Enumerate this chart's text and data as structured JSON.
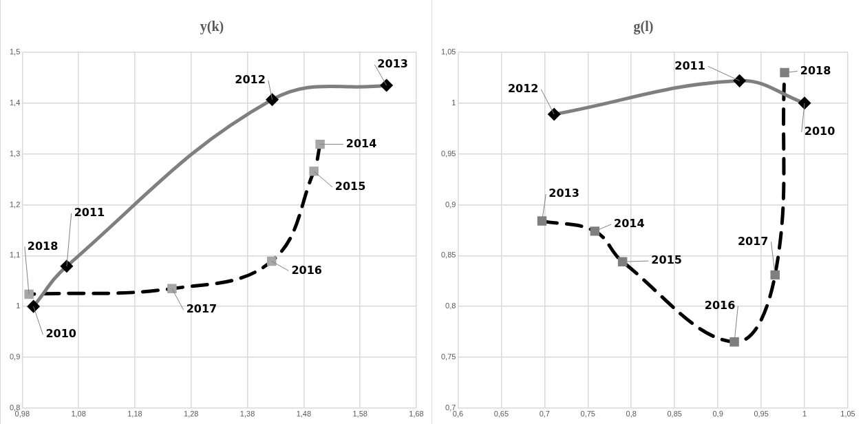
{
  "chart_data": [
    {
      "type": "line",
      "title": "y(k)",
      "grid": true,
      "xlim": [
        0.98,
        1.68
      ],
      "xticks": [
        {
          "value": 0.98,
          "label": "0,98"
        },
        {
          "value": 1.08,
          "label": "1,08"
        },
        {
          "value": 1.18,
          "label": "1,18"
        },
        {
          "value": 1.28,
          "label": "1,28"
        },
        {
          "value": 1.38,
          "label": "1,38"
        },
        {
          "value": 1.48,
          "label": "1,48"
        },
        {
          "value": 1.58,
          "label": "1,58"
        },
        {
          "value": 1.68,
          "label": "1,68"
        }
      ],
      "ylim": [
        0.8,
        1.5
      ],
      "yticks": [
        {
          "value": 0.8,
          "label": "0,8"
        },
        {
          "value": 0.9,
          "label": "0,9"
        },
        1,
        {
          "value": 1.1,
          "label": "1,1"
        },
        {
          "value": 1.2,
          "label": "1,2"
        },
        {
          "value": 1.3,
          "label": "1,3"
        },
        {
          "value": 1.4,
          "label": "1,4"
        },
        {
          "value": 1.5,
          "label": "1,5"
        }
      ],
      "series": [
        {
          "color": "#7f7f7f",
          "colors": [
            "#000000",
            "#000000",
            "#000000",
            "#000000"
          ],
          "marker": "diamond",
          "line_style": "solid",
          "x": [
            1.0,
            1.059,
            1.424,
            1.627
          ],
          "values": [
            1.0,
            1.079,
            1.407,
            1.435
          ]
        },
        {
          "color": "#000000",
          "colors": [
            "#a6a6a6",
            "#a6a6a6",
            "#a6a6a6",
            "#a6a6a6",
            "#a6a6a6"
          ],
          "marker": "square",
          "line_style": "dashed",
          "x": [
            1.509,
            1.498,
            1.423,
            1.246,
            0.992
          ],
          "values": [
            1.319,
            1.266,
            1.089,
            1.035,
            1.024
          ]
        }
      ],
      "annotations": [
        {
          "text": "2010",
          "x": 1.0,
          "y": 1.0
        },
        {
          "text": "2011",
          "x": 1.059,
          "y": 1.079
        },
        {
          "text": "2012",
          "x": 1.424,
          "y": 1.407
        },
        {
          "text": "2013",
          "x": 1.627,
          "y": 1.435
        },
        {
          "text": "2014",
          "x": 1.509,
          "y": 1.319
        },
        {
          "text": "2015",
          "x": 1.498,
          "y": 1.266
        },
        {
          "text": "2016",
          "x": 1.423,
          "y": 1.089
        },
        {
          "text": "2017",
          "x": 1.246,
          "y": 1.035
        },
        {
          "text": "2018",
          "x": 0.992,
          "y": 1.024
        }
      ]
    },
    {
      "type": "line",
      "title": "g(l)",
      "grid": true,
      "xlim": [
        0.6,
        1.05
      ],
      "xticks": [
        {
          "value": 0.6,
          "label": "0,6"
        },
        {
          "value": 0.65,
          "label": "0,65"
        },
        {
          "value": 0.7,
          "label": "0,7"
        },
        {
          "value": 0.75,
          "label": "0,75"
        },
        {
          "value": 0.8,
          "label": "0,8"
        },
        {
          "value": 0.85,
          "label": "0,85"
        },
        {
          "value": 0.9,
          "label": "0,9"
        },
        {
          "value": 0.95,
          "label": "0,95"
        },
        1,
        {
          "value": 1.05,
          "label": "1,05"
        }
      ],
      "ylim": [
        0.7,
        1.05
      ],
      "yticks": [
        {
          "value": 0.7,
          "label": "0,7"
        },
        {
          "value": 0.75,
          "label": "0,75"
        },
        {
          "value": 0.8,
          "label": "0,8"
        },
        {
          "value": 0.85,
          "label": "0,85"
        },
        {
          "value": 0.9,
          "label": "0,9"
        },
        {
          "value": 0.95,
          "label": "0,95"
        },
        1,
        {
          "value": 1.05,
          "label": "1,05"
        }
      ],
      "series": [
        {
          "color": "#7f7f7f",
          "colors": [
            "#000000",
            "#000000",
            "#000000"
          ],
          "marker": "diamond",
          "line_style": "solid",
          "x": [
            1.0,
            0.925,
            0.711
          ],
          "values": [
            1.0,
            1.022,
            0.989
          ]
        },
        {
          "color": "#000000",
          "colors": [
            "#7f7f7f",
            "#7f7f7f",
            "#7f7f7f",
            "#7f7f7f",
            "#7f7f7f",
            "#7f7f7f"
          ],
          "marker": "square",
          "line_style": "dashed",
          "x": [
            0.697,
            0.758,
            0.79,
            0.919,
            0.966,
            0.977
          ],
          "values": [
            0.884,
            0.874,
            0.844,
            0.765,
            0.831,
            1.03
          ]
        }
      ],
      "annotations": [
        {
          "text": "2010",
          "x": 1.0,
          "y": 1.0
        },
        {
          "text": "2011",
          "x": 0.925,
          "y": 1.022
        },
        {
          "text": "2012",
          "x": 0.711,
          "y": 0.989
        },
        {
          "text": "2013",
          "x": 0.697,
          "y": 0.884
        },
        {
          "text": "2014",
          "x": 0.758,
          "y": 0.874
        },
        {
          "text": "2015",
          "x": 0.79,
          "y": 0.844
        },
        {
          "text": "2016",
          "x": 0.919,
          "y": 0.765
        },
        {
          "text": "2017",
          "x": 0.966,
          "y": 0.831
        },
        {
          "text": "2018",
          "x": 0.977,
          "y": 1.03
        }
      ]
    }
  ]
}
